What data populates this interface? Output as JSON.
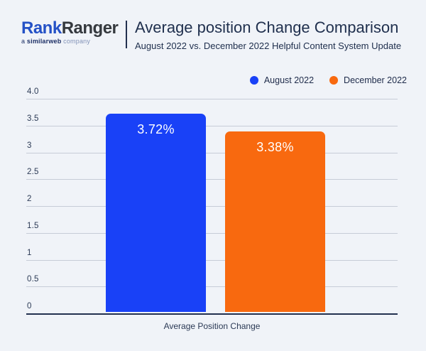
{
  "logo": {
    "part1": "Rank",
    "part2": "Ranger",
    "sub_prefix": "a",
    "sub_brand": "similarweb",
    "sub_suffix": "company"
  },
  "header": {
    "title": "Average position Change Comparison",
    "subtitle": "August 2022 vs. December 2022 Helpful Content System Update"
  },
  "colors": {
    "background": "#f0f3f8",
    "august_blue": "#1941f7",
    "december_orange": "#f8690f",
    "text_dark": "#20304e",
    "gridline": "#c7ccd7",
    "axis_line": "#22304f",
    "logo_blue": "#2451c6",
    "logo_dark": "#35393e"
  },
  "chart_data": {
    "type": "bar",
    "categories": [
      "Average Position Change"
    ],
    "series": [
      {
        "name": "August 2022",
        "values": [
          3.72
        ],
        "label": "3.72%",
        "color": "#1941f7"
      },
      {
        "name": "December 2022",
        "values": [
          3.38
        ],
        "label": "3.38%",
        "color": "#f8690f"
      }
    ],
    "title": "Average position Change Comparison",
    "subtitle": "August 2022 vs. December 2022 Helpful Content System Update",
    "xlabel": "Average Position Change",
    "ylabel": "",
    "ylim": [
      0,
      4
    ],
    "yticks": [
      "4.0",
      "3.5",
      "3",
      "2.5",
      "2",
      "1.5",
      "1",
      "0.5",
      "0"
    ],
    "ytick_values": [
      4.0,
      3.5,
      3.0,
      2.5,
      2.0,
      1.5,
      1.0,
      0.5,
      0
    ],
    "grid": true,
    "legend_position": "top-right"
  }
}
